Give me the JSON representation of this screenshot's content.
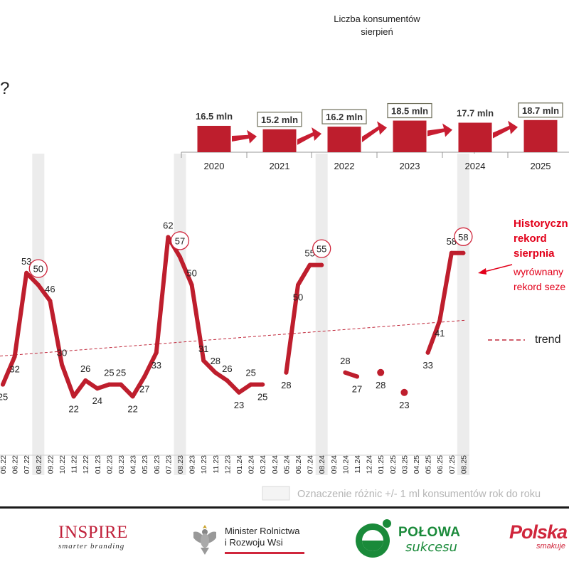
{
  "question_mark": "?",
  "chart_data": [
    {
      "type": "bar",
      "title": "Liczba konsumentów",
      "subtitle": "sierpień",
      "categories": [
        "2020",
        "2021",
        "2022",
        "2023",
        "2024",
        "2025"
      ],
      "values": [
        16.5,
        15.2,
        16.2,
        18.5,
        17.7,
        18.7
      ],
      "data_labels": [
        "16.5 mln",
        "15.2 mln",
        "16.2 mln",
        "18.5 mln",
        "17.7 mln",
        "18.7 mln"
      ],
      "boxed_labels": [
        false,
        true,
        true,
        true,
        false,
        true
      ],
      "bar_color": "#be1e2d",
      "arrow_color": "#c81d31"
    },
    {
      "type": "line",
      "x": [
        "05.22",
        "06.22",
        "07.22",
        "08.22",
        "09.22",
        "10.22",
        "11.22",
        "12.22",
        "01.23",
        "02.23",
        "03.23",
        "04.23",
        "05.23",
        "06.23",
        "07.23",
        "08.23",
        "09.23",
        "10.23",
        "11.23",
        "12.23",
        "01.24",
        "02.24",
        "03.24",
        "04.24",
        "05.24",
        "06.24",
        "07.24",
        "08.24",
        "09.24",
        "10.24",
        "11.24",
        "12.24",
        "01.25",
        "02.25",
        "03.25",
        "04.25",
        "05.25",
        "06.25",
        "07.25",
        "08.25"
      ],
      "series": [
        {
          "values": [
            25,
            32,
            53,
            50,
            46,
            30,
            22,
            26,
            24,
            25,
            25,
            22,
            27,
            33,
            62,
            57,
            50,
            31,
            28,
            26,
            23,
            25,
            25,
            null,
            28,
            50,
            55,
            55,
            null,
            28,
            27,
            null,
            28,
            null,
            23,
            null,
            33,
            41,
            58,
            58
          ]
        }
      ],
      "labels": [
        "25",
        "32",
        "53",
        "50",
        "46",
        "30",
        "22",
        "26",
        "24",
        "25",
        "25",
        "22",
        "27",
        "33",
        "62",
        "57",
        "50",
        "31",
        "28",
        "26",
        "23",
        "25",
        "25",
        "",
        "28",
        "50",
        "55",
        "55",
        "",
        "28",
        "27",
        "",
        "28",
        "",
        "23",
        "",
        "33",
        "41",
        "58",
        "58"
      ],
      "circled": [
        "08.22",
        "08.23",
        "08.24",
        "08.25"
      ],
      "highlighted_columns": [
        "08.22",
        "08.23",
        "08.24",
        "08.25"
      ],
      "trend": {
        "start": 30,
        "end": 39,
        "color": "#c0283b",
        "label": "trend"
      },
      "line_color": "#be1e2d",
      "annotation": {
        "bold": [
          "Historyczn",
          "rekord",
          "sierpnia"
        ],
        "normal": [
          "wyrównany",
          "rekord seze"
        ]
      },
      "legend_note": "Oznaczenie różnic +/- 1 ml konsumentów rok do roku"
    }
  ],
  "footer": {
    "inspire": {
      "name": "INSPIRE",
      "tagline": "smarter branding"
    },
    "ministry": {
      "line1": "Minister Rolnictwa",
      "line2": "i Rozwoju Wsi"
    },
    "polowa": {
      "name": "POŁOWA",
      "sub": "sukcesu"
    },
    "polska": {
      "name": "Polska",
      "sub": "smakuje"
    }
  }
}
